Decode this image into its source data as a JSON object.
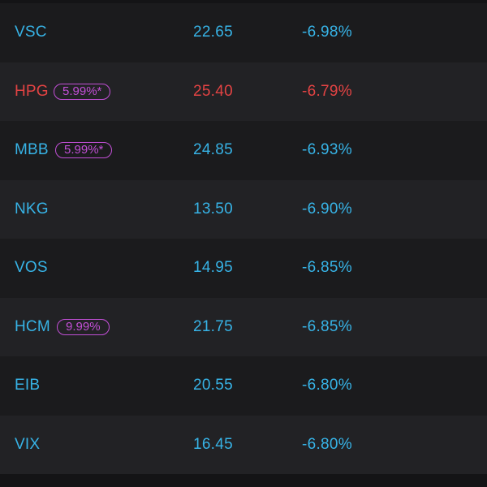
{
  "colors": {
    "background": "#141416",
    "row_odd": "#1b1b1d",
    "row_even": "#222225",
    "text_blue": "#37b3e6",
    "text_red": "#e24343",
    "badge_purple": "#c24fd6"
  },
  "stocks": [
    {
      "symbol": "VSC",
      "badge": "",
      "price": "22.65",
      "change": "-6.98%"
    },
    {
      "symbol": "HPG",
      "badge": "5.99%*",
      "price": "25.40",
      "change": "-6.79%"
    },
    {
      "symbol": "MBB",
      "badge": "5.99%*",
      "price": "24.85",
      "change": "-6.93%"
    },
    {
      "symbol": "NKG",
      "badge": "",
      "price": "13.50",
      "change": "-6.90%"
    },
    {
      "symbol": "VOS",
      "badge": "",
      "price": "14.95",
      "change": "-6.85%"
    },
    {
      "symbol": "HCM",
      "badge": "9.99%",
      "price": "21.75",
      "change": "-6.85%"
    },
    {
      "symbol": "EIB",
      "badge": "",
      "price": "20.55",
      "change": "-6.80%"
    },
    {
      "symbol": "VIX",
      "badge": "",
      "price": "16.45",
      "change": "-6.80%"
    }
  ]
}
